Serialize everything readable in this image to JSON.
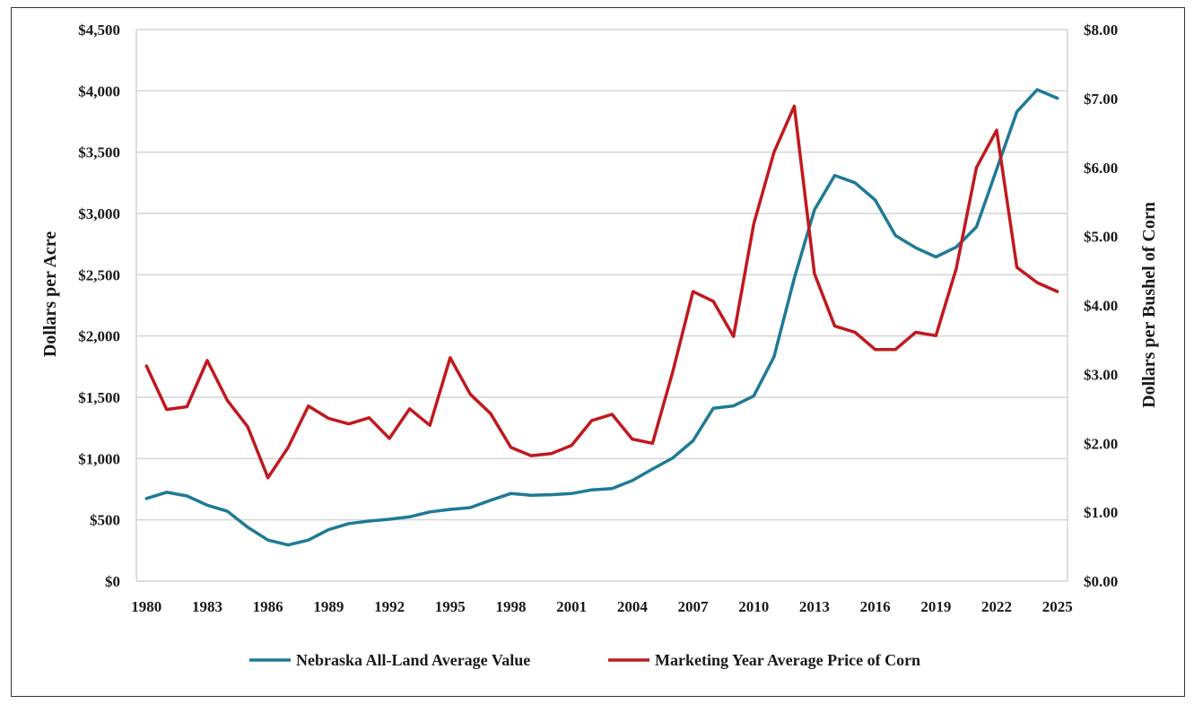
{
  "chart_data": {
    "type": "line",
    "x": [
      1980,
      1981,
      1982,
      1983,
      1984,
      1985,
      1986,
      1987,
      1988,
      1989,
      1990,
      1991,
      1992,
      1993,
      1994,
      1995,
      1996,
      1997,
      1998,
      1999,
      2000,
      2001,
      2002,
      2003,
      2004,
      2005,
      2006,
      2007,
      2008,
      2009,
      2010,
      2011,
      2012,
      2013,
      2014,
      2015,
      2016,
      2017,
      2018,
      2019,
      2020,
      2021,
      2022,
      2023,
      2024,
      2025
    ],
    "x_ticks": [
      "1980",
      "1983",
      "1986",
      "1989",
      "1992",
      "1995",
      "1998",
      "2001",
      "2004",
      "2007",
      "2010",
      "2013",
      "2016",
      "2019",
      "2022",
      "2025"
    ],
    "x_tick_values": [
      1980,
      1983,
      1986,
      1989,
      1992,
      1995,
      1998,
      2001,
      2004,
      2007,
      2010,
      2013,
      2016,
      2019,
      2022,
      2025
    ],
    "xlim": [
      1979.5,
      2025.5
    ],
    "ylabel": "Dollars per Acre",
    "ylim": [
      0,
      4500
    ],
    "y_ticks": [
      "$0",
      "$500",
      "$1,000",
      "$1,500",
      "$2,000",
      "$2,500",
      "$3,000",
      "$3,500",
      "$4,000",
      "$4,500"
    ],
    "y_tick_values": [
      0,
      500,
      1000,
      1500,
      2000,
      2500,
      3000,
      3500,
      4000,
      4500
    ],
    "y2label": "Dollars per Bushel of Corn",
    "y2lim": [
      0,
      8
    ],
    "y2_ticks": [
      "$0.00",
      "$1.00",
      "$2.00",
      "$3.00",
      "$4.00",
      "$5.00",
      "$6.00",
      "$7.00",
      "$8.00"
    ],
    "y2_tick_values": [
      0,
      1,
      2,
      3,
      4,
      5,
      6,
      7,
      8
    ],
    "grid": "horizontal",
    "legend_position": "bottom",
    "series": [
      {
        "name": "Nebraska All-Land Average Value",
        "axis": "left",
        "color": "#1f7a96",
        "values": [
          675,
          725,
          695,
          620,
          570,
          440,
          335,
          295,
          335,
          420,
          470,
          490,
          505,
          525,
          565,
          585,
          600,
          660,
          715,
          700,
          705,
          715,
          745,
          755,
          820,
          915,
          1005,
          1145,
          1410,
          1430,
          1510,
          1830,
          2470,
          3030,
          3310,
          3250,
          3110,
          2820,
          2720,
          2645,
          2725,
          2890,
          3360,
          3830,
          4010,
          3940
        ]
      },
      {
        "name": "Marketing Year Average Price of Corn",
        "axis": "right",
        "color": "#c0191e",
        "values": [
          3.12,
          2.49,
          2.53,
          3.2,
          2.62,
          2.24,
          1.5,
          1.94,
          2.54,
          2.36,
          2.28,
          2.37,
          2.07,
          2.5,
          2.26,
          3.24,
          2.71,
          2.43,
          1.94,
          1.82,
          1.85,
          1.97,
          2.33,
          2.42,
          2.06,
          2.0,
          3.04,
          4.2,
          4.06,
          3.55,
          5.18,
          6.22,
          6.89,
          4.46,
          3.7,
          3.61,
          3.36,
          3.36,
          3.61,
          3.56,
          4.53,
          6.0,
          6.54,
          4.55,
          4.33,
          4.2
        ]
      }
    ]
  }
}
